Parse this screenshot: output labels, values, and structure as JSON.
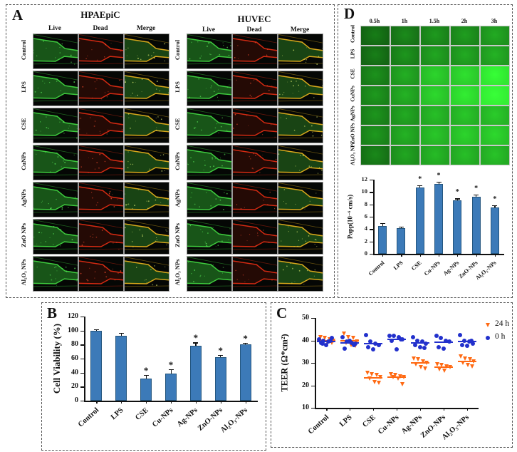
{
  "figure": {
    "panel_a": {
      "label": "A",
      "column_headers": [
        "Live",
        "Dead",
        "Merge"
      ],
      "row_labels": [
        "Control",
        "LPS",
        "CSE",
        "CuNPs",
        "AgNPs",
        "ZnO NPs",
        "Al₂O₃ NPs"
      ],
      "groups": [
        {
          "title": "HPAEpiC"
        },
        {
          "title": "HUVEC"
        }
      ],
      "colors": {
        "live_edge": "#3ecb3e",
        "live_fill": "rgba(40,150,40,0.55)",
        "dead_edge": "#d42a12",
        "dead_fill": "rgba(150,22,10,0.22)",
        "merge_edge": "#d8a81c",
        "merge_fill": "rgba(45,130,35,0.50)"
      }
    },
    "panel_d": {
      "label": "D",
      "time_labels": [
        "0.5h",
        "1h",
        "1.5h",
        "2h",
        "3h"
      ],
      "row_labels": [
        "Control",
        "LPS",
        "CSE",
        "CuNPs",
        "AgNPs",
        "ZnO NPs",
        "Al₂O₃ NPs"
      ],
      "brightness": [
        [
          0.26,
          0.33,
          0.4,
          0.42,
          0.48
        ],
        [
          0.27,
          0.38,
          0.46,
          0.48,
          0.52
        ],
        [
          0.36,
          0.5,
          0.68,
          0.74,
          0.88
        ],
        [
          0.4,
          0.52,
          0.7,
          0.8,
          0.92
        ],
        [
          0.38,
          0.48,
          0.58,
          0.62,
          0.64
        ],
        [
          0.4,
          0.52,
          0.62,
          0.68,
          0.7
        ],
        [
          0.32,
          0.46,
          0.56,
          0.58,
          0.6
        ]
      ]
    },
    "panel_b": {
      "label": "B"
    },
    "panel_c": {
      "label": "C"
    }
  },
  "chart_data": [
    {
      "id": "cell_viability",
      "type": "bar",
      "panel": "B",
      "categories": [
        "Control",
        "LPS",
        "CSE",
        "Cu-NPs",
        "Ag-NPs",
        "ZnO-NPs",
        "Al₂O₃-NPs"
      ],
      "values": [
        100,
        93,
        32,
        39,
        78,
        62,
        80
      ],
      "errors": [
        1.5,
        3.5,
        4.5,
        6,
        5,
        3,
        2.5
      ],
      "significance": [
        "",
        "",
        "*",
        "*",
        "*",
        "*",
        "*"
      ],
      "ylabel": "Cell Viability (%)",
      "ylim": [
        0,
        120
      ],
      "ytick_step": 20,
      "bar_color": "#3C7AB8",
      "bar_border": "#24567E",
      "grid": false
    },
    {
      "id": "teer",
      "type": "scatter",
      "panel": "C",
      "categories": [
        "Control",
        "LPS",
        "CSE",
        "Cu-NPs",
        "Ag-NPs",
        "ZnO-NPs",
        "Al₂O₃-NPs"
      ],
      "ylabel": "TEER (Ω*cm²)",
      "ylim": [
        10,
        50
      ],
      "ytick_step": 10,
      "grid": false,
      "legend_position": "top-right",
      "series": [
        {
          "name": "24 h",
          "marker": "triangle-down",
          "color": "#FF6A13",
          "values": [
            [
              41.5,
              41,
              40.5,
              40,
              39.5,
              39,
              38.8
            ],
            [
              43,
              41.5,
              41,
              39.5,
              39,
              38,
              37.5
            ],
            [
              25.5,
              25,
              24.5,
              23.5,
              23,
              21.5,
              21
            ],
            [
              25,
              24.5,
              24,
              23.8,
              23.5,
              23,
              20.5
            ],
            [
              32,
              31.5,
              30.5,
              30,
              29.5,
              28,
              27.5
            ],
            [
              29.5,
              29,
              28.5,
              28,
              27,
              26.5
            ],
            [
              33,
              32,
              31.5,
              30.5,
              30,
              29,
              28.5
            ]
          ],
          "means": [
            40.0,
            39.9,
            23.4,
            23.5,
            29.9,
            28.1,
            30.6
          ]
        },
        {
          "name": "0 h",
          "marker": "circle",
          "color": "#2230CC",
          "values": [
            [
              40.5,
              40,
              39.5,
              41,
              39,
              38,
              40,
              38.5
            ],
            [
              41.5,
              39.5,
              39,
              38.5,
              36.5,
              40,
              38
            ],
            [
              42.5,
              39.5,
              38.5,
              38,
              37,
              36
            ],
            [
              42,
              42,
              41.5,
              40.5,
              40,
              36,
              40.5
            ],
            [
              41.5,
              40,
              39.5,
              38.5,
              38,
              37,
              36.8
            ],
            [
              42,
              41,
              40,
              39.5,
              37,
              36.5
            ],
            [
              42.5,
              40,
              39.5,
              38.5,
              38,
              37.5,
              40
            ]
          ],
          "means": [
            39.6,
            39.0,
            38.6,
            40.4,
            38.8,
            39.3,
            39.4
          ]
        }
      ]
    },
    {
      "id": "papp",
      "type": "bar",
      "panel": "D",
      "categories": [
        "Control",
        "LPS",
        "CSE",
        "Cu-NPs",
        "Ag-NPs",
        "ZnO-NPs",
        "Al₂O₃-NPs"
      ],
      "values": [
        4.45,
        4.2,
        10.75,
        11.35,
        8.65,
        9.2,
        7.45
      ],
      "errors": [
        0.5,
        0.15,
        0.35,
        0.3,
        0.3,
        0.35,
        0.45
      ],
      "significance": [
        "",
        "",
        "*",
        "*",
        "*",
        "*",
        "*"
      ],
      "ylabel": "Papp(10⁻⁶ cm/s)",
      "ylim": [
        0,
        12
      ],
      "ytick_step": 2,
      "bar_color": "#3C7AB8",
      "bar_border": "#24567E",
      "grid": false
    }
  ]
}
